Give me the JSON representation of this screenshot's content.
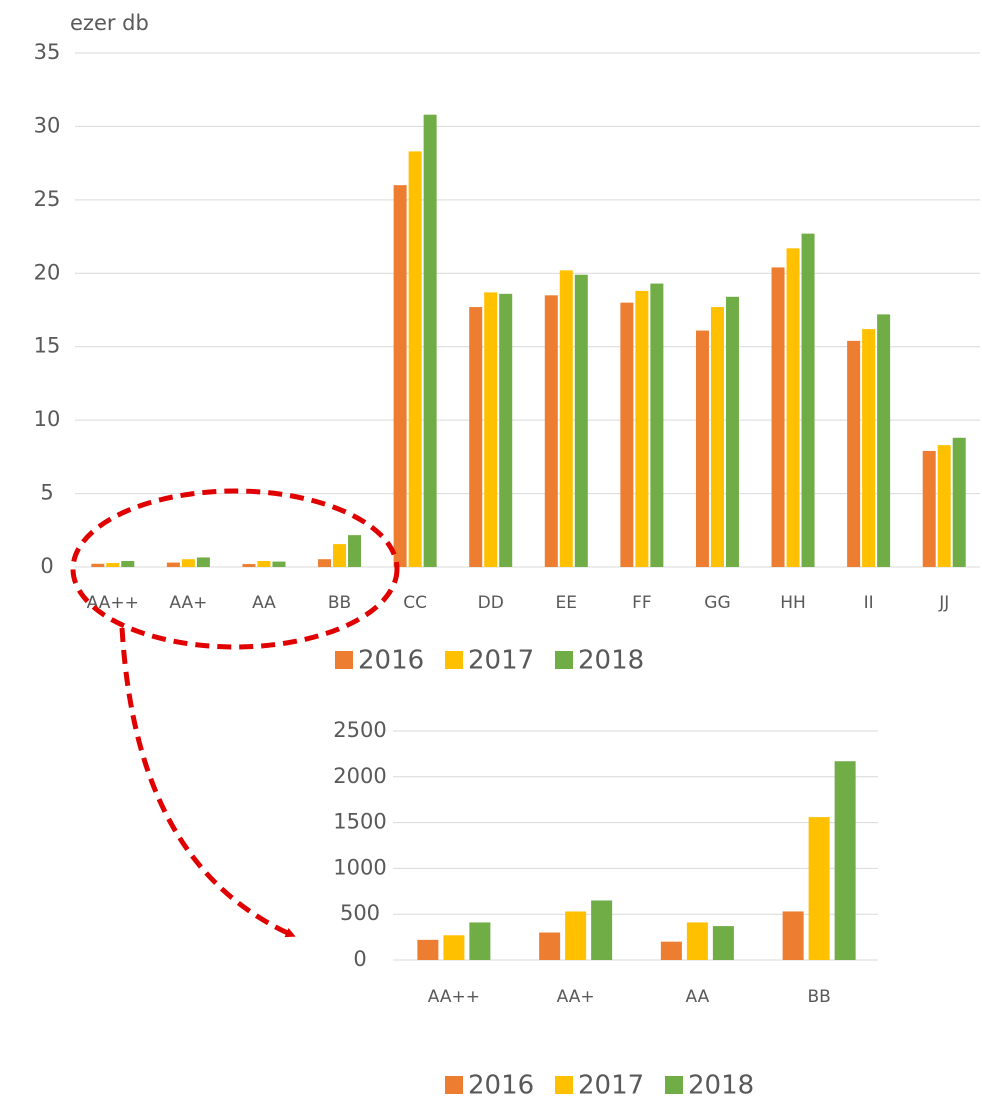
{
  "chart_data": [
    {
      "type": "bar",
      "y_label": "ezer db",
      "categories": [
        "AA++",
        "AA+",
        "AA",
        "BB",
        "CC",
        "DD",
        "EE",
        "FF",
        "GG",
        "HH",
        "II",
        "JJ"
      ],
      "series": [
        {
          "name": "2016",
          "color": "#ed7d31",
          "values": [
            0.22,
            0.3,
            0.2,
            0.53,
            26.0,
            17.7,
            18.5,
            18.0,
            16.1,
            20.4,
            15.4,
            7.9
          ]
        },
        {
          "name": "2017",
          "color": "#ffc000",
          "values": [
            0.27,
            0.53,
            0.41,
            1.56,
            28.3,
            18.7,
            20.2,
            18.8,
            17.7,
            21.7,
            16.2,
            8.3
          ]
        },
        {
          "name": "2018",
          "color": "#70ad47",
          "values": [
            0.41,
            0.65,
            0.37,
            2.17,
            30.8,
            18.6,
            19.9,
            19.3,
            18.4,
            22.7,
            17.2,
            8.8
          ]
        }
      ],
      "ylim": [
        0,
        35
      ],
      "yticks": [
        0,
        5,
        10,
        15,
        20,
        25,
        30,
        35
      ],
      "grid": true,
      "legend": "bottom"
    },
    {
      "type": "bar",
      "categories": [
        "AA++",
        "AA+",
        "AA",
        "BB"
      ],
      "series": [
        {
          "name": "2016",
          "color": "#ed7d31",
          "values": [
            220,
            300,
            200,
            530
          ]
        },
        {
          "name": "2017",
          "color": "#ffc000",
          "values": [
            270,
            530,
            410,
            1560
          ]
        },
        {
          "name": "2018",
          "color": "#70ad47",
          "values": [
            410,
            650,
            370,
            2170
          ]
        }
      ],
      "ylim": [
        0,
        2500
      ],
      "yticks": [
        0,
        500,
        1000,
        1500,
        2000,
        2500
      ],
      "grid": true,
      "legend": "bottom"
    }
  ]
}
